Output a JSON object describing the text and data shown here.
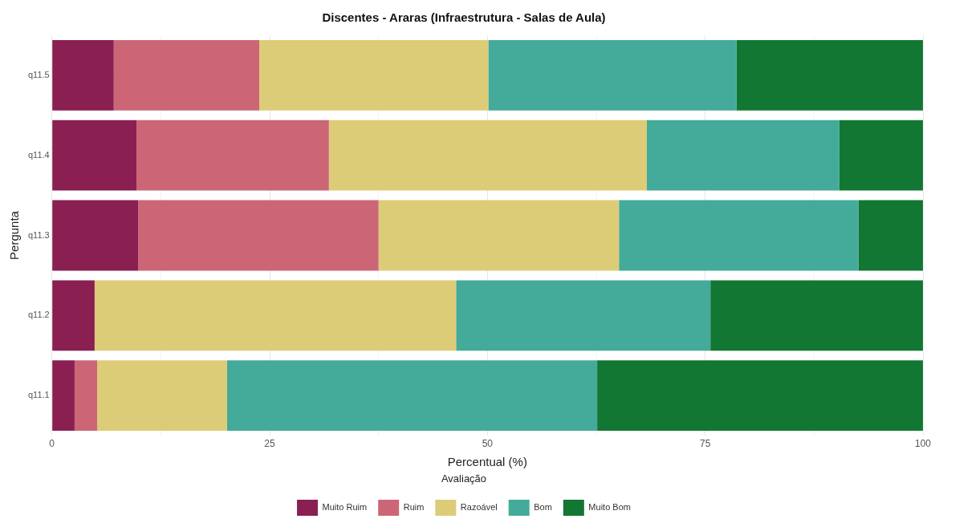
{
  "chart_data": {
    "type": "bar",
    "orientation": "horizontal",
    "stacked": true,
    "title": "Discentes - Araras (Infraestrutura - Salas de Aula)",
    "xlabel": "Percentual (%)",
    "ylabel": "Pergunta",
    "legend_title": "Avaliação",
    "categories": [
      "q11.5",
      "q11.4",
      "q11.3",
      "q11.2",
      "q11.1"
    ],
    "series": [
      {
        "name": "Muito Ruim",
        "color": "#8a1f52",
        "values": [
          7.1,
          9.7,
          9.9,
          4.9,
          2.6
        ]
      },
      {
        "name": "Ruim",
        "color": "#cc6677",
        "values": [
          16.7,
          22.1,
          27.6,
          0,
          2.6
        ]
      },
      {
        "name": "Razoável",
        "color": "#ddcc77",
        "values": [
          26.3,
          36.5,
          27.6,
          41.5,
          14.9
        ]
      },
      {
        "name": "Bom",
        "color": "#44aa99",
        "values": [
          28.5,
          22.1,
          27.5,
          29.2,
          42.5
        ]
      },
      {
        "name": "Muito Bom",
        "color": "#117733",
        "values": [
          21.4,
          9.6,
          7.4,
          24.4,
          37.4
        ]
      }
    ],
    "xlim": [
      0,
      100
    ],
    "xticks": [
      0,
      {
        "value": 12.5,
        "label": null
      },
      25,
      {
        "value": 37.5,
        "label": null
      },
      50,
      {
        "value": 62.5,
        "label": null
      },
      75,
      {
        "value": 87.5,
        "label": null
      },
      100
    ],
    "grid": true,
    "legend": "bottom"
  }
}
